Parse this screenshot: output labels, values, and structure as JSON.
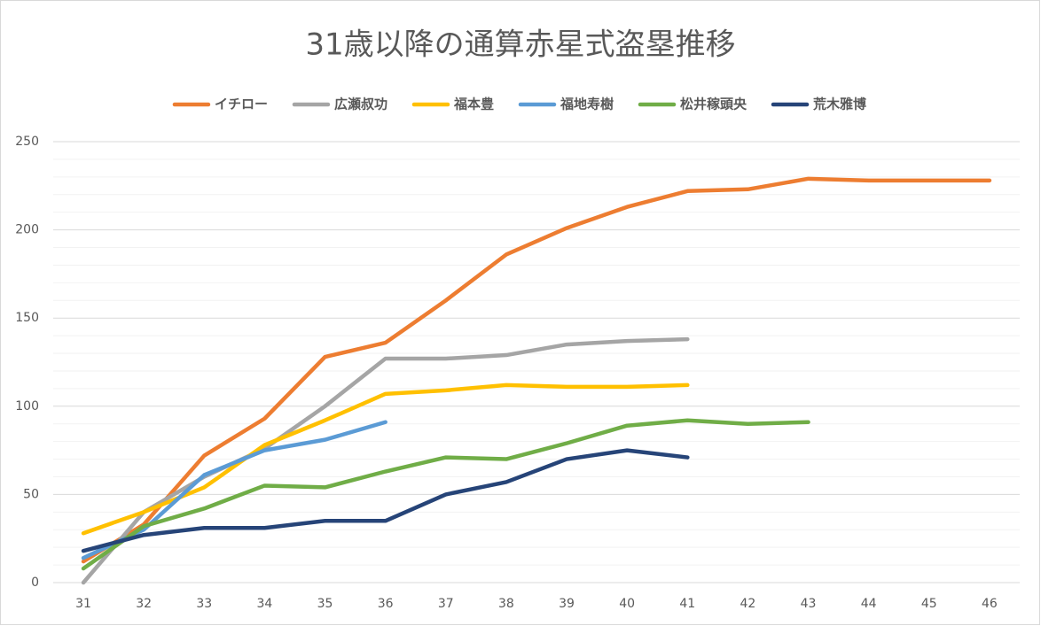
{
  "chart_data": {
    "type": "line",
    "title": "31歳以降の通算赤星式盗塁推移",
    "categories": [
      31,
      32,
      33,
      34,
      35,
      36,
      37,
      38,
      39,
      40,
      41,
      42,
      43,
      44,
      45,
      46
    ],
    "series": [
      {
        "name": "イチロー",
        "color": "#ed7d31",
        "values": [
          12,
          33,
          72,
          93,
          128,
          136,
          160,
          186,
          201,
          213,
          222,
          223,
          229,
          228,
          228,
          228
        ]
      },
      {
        "name": "広瀬叔功",
        "color": "#a5a5a5",
        "values": [
          0,
          40,
          60,
          76,
          100,
          127,
          127,
          129,
          135,
          137,
          138,
          null,
          null,
          null,
          null,
          null
        ]
      },
      {
        "name": "福本豊",
        "color": "#ffc000",
        "values": [
          28,
          40,
          54,
          78,
          92,
          107,
          109,
          112,
          111,
          111,
          112,
          null,
          null,
          null,
          null,
          null
        ]
      },
      {
        "name": "福地寿樹",
        "color": "#5b9bd5",
        "values": [
          14,
          30,
          61,
          75,
          81,
          91,
          null,
          null,
          null,
          null,
          null,
          null,
          null,
          null,
          null,
          null
        ]
      },
      {
        "name": "松井稼頭央",
        "color": "#70ad47",
        "values": [
          8,
          32,
          42,
          55,
          54,
          63,
          71,
          70,
          79,
          89,
          92,
          90,
          91,
          null,
          null,
          null
        ]
      },
      {
        "name": "荒木雅博",
        "color": "#264478",
        "values": [
          18,
          27,
          31,
          31,
          35,
          35,
          50,
          57,
          70,
          75,
          71,
          null,
          null,
          null,
          null,
          null
        ]
      }
    ],
    "ylim": [
      0,
      250
    ],
    "yticks": [
      0,
      50,
      100,
      150,
      200,
      250
    ],
    "yminor_ticks": [
      10,
      20,
      30,
      40,
      60,
      70,
      80,
      90,
      110,
      120,
      130,
      140,
      160,
      170,
      180,
      190,
      210,
      220,
      230,
      240
    ],
    "grid": true,
    "legend": "top"
  }
}
